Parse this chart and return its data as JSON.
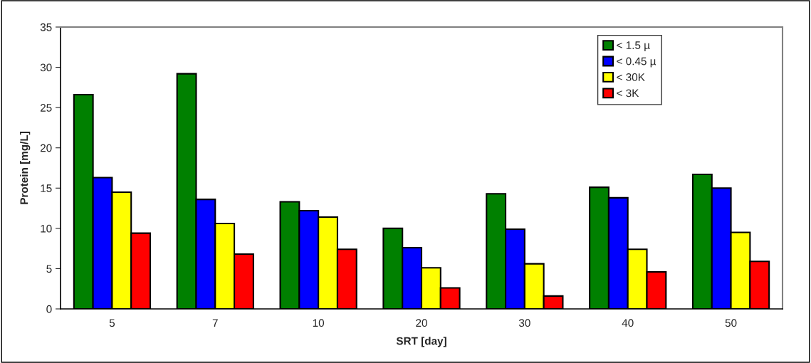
{
  "chart_data": {
    "type": "bar",
    "xlabel": "SRT [day]",
    "ylabel": "Protein [mg/L]",
    "categories": [
      "5",
      "7",
      "10",
      "20",
      "30",
      "40",
      "50"
    ],
    "series": [
      {
        "name": "< 1.5 µ",
        "color": "#008000",
        "values": [
          26.6,
          29.2,
          13.3,
          10.0,
          14.3,
          15.1,
          16.7
        ]
      },
      {
        "name": "< 0.45 µ",
        "color": "#0000ff",
        "values": [
          16.3,
          13.6,
          12.2,
          7.6,
          9.9,
          13.8,
          15.0
        ]
      },
      {
        "name": "< 30K",
        "color": "#ffff00",
        "values": [
          14.5,
          10.6,
          11.4,
          5.1,
          5.6,
          7.4,
          9.5
        ]
      },
      {
        "name": "< 3K",
        "color": "#ff0000",
        "values": [
          9.4,
          6.8,
          7.4,
          2.6,
          1.6,
          4.6,
          5.9
        ]
      }
    ],
    "ylim": [
      0,
      35
    ],
    "yticks": [
      0,
      5,
      10,
      15,
      20,
      25,
      30,
      35
    ],
    "grid": false,
    "legend": "top right"
  }
}
